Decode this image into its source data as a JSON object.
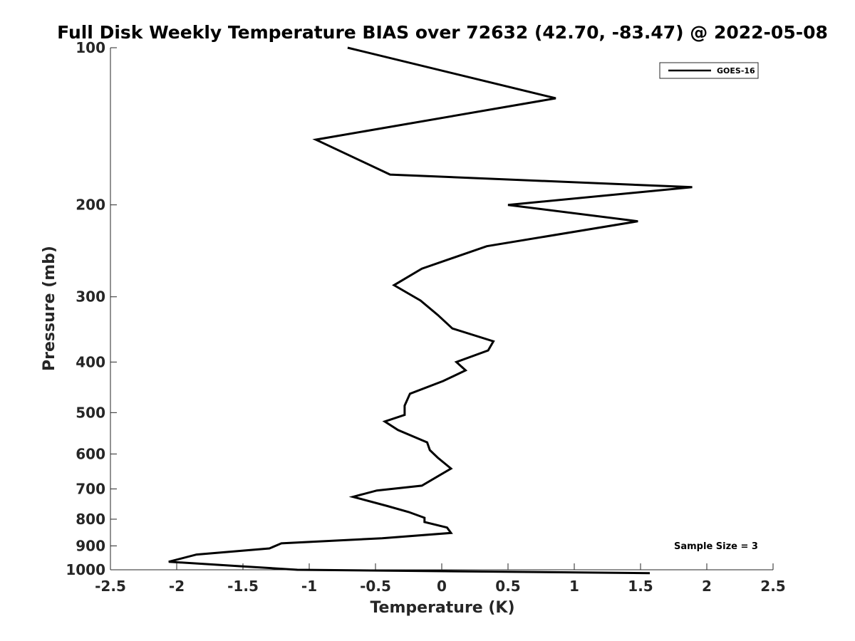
{
  "chart_data": {
    "type": "line",
    "title": "Full Disk Weekly Temperature BIAS over 72632 (42.70, -83.47) @ 2022-05-08",
    "xlabel": "Temperature (K)",
    "ylabel": "Pressure (mb)",
    "xlim": [
      -2.5,
      2.5
    ],
    "ylim": [
      100,
      1000
    ],
    "yscale": "log",
    "y_reversed": true,
    "grid": false,
    "legend_position": "top-right",
    "x_ticks": [
      -2.5,
      -2,
      -1.5,
      -1,
      -0.5,
      0,
      0.5,
      1,
      1.5,
      2,
      2.5
    ],
    "x_tick_labels": [
      "-2.5",
      "-2",
      "-1.5",
      "-1",
      "-0.5",
      "0",
      "0.5",
      "1",
      "1.5",
      "2",
      "2.5"
    ],
    "y_ticks": [
      100,
      200,
      300,
      400,
      500,
      600,
      700,
      800,
      900,
      1000
    ],
    "y_tick_labels": [
      "100",
      "200",
      "300",
      "400",
      "500",
      "600",
      "700",
      "800",
      "900",
      "1000"
    ],
    "annotation": "Sample Size = 3",
    "line_color": "#000000",
    "series": [
      {
        "name": "GOES-16",
        "temperature": [
          -0.71,
          0.86,
          -0.95,
          -0.39,
          1.89,
          0.5,
          1.48,
          0.34,
          -0.15,
          -0.36,
          -0.16,
          -0.03,
          0.08,
          0.39,
          0.35,
          0.11,
          0.18,
          0.01,
          -0.24,
          -0.28,
          -0.28,
          -0.43,
          -0.33,
          -0.11,
          -0.09,
          -0.03,
          0.07,
          -0.02,
          -0.15,
          -0.49,
          -0.67,
          -0.41,
          -0.25,
          -0.13,
          -0.13,
          0.04,
          0.07,
          -0.45,
          -1.21,
          -1.3,
          -1.85,
          -2.06,
          -1.5,
          -1.09,
          1.57
        ],
        "pressure": [
          100,
          125,
          150,
          175,
          185,
          200,
          215,
          240,
          265,
          285,
          305,
          325,
          345,
          365,
          380,
          400,
          415,
          435,
          460,
          485,
          505,
          520,
          540,
          570,
          590,
          610,
          640,
          660,
          690,
          705,
          725,
          755,
          775,
          795,
          810,
          830,
          850,
          870,
          890,
          910,
          935,
          965,
          985,
          1000,
          1015
        ]
      }
    ]
  }
}
